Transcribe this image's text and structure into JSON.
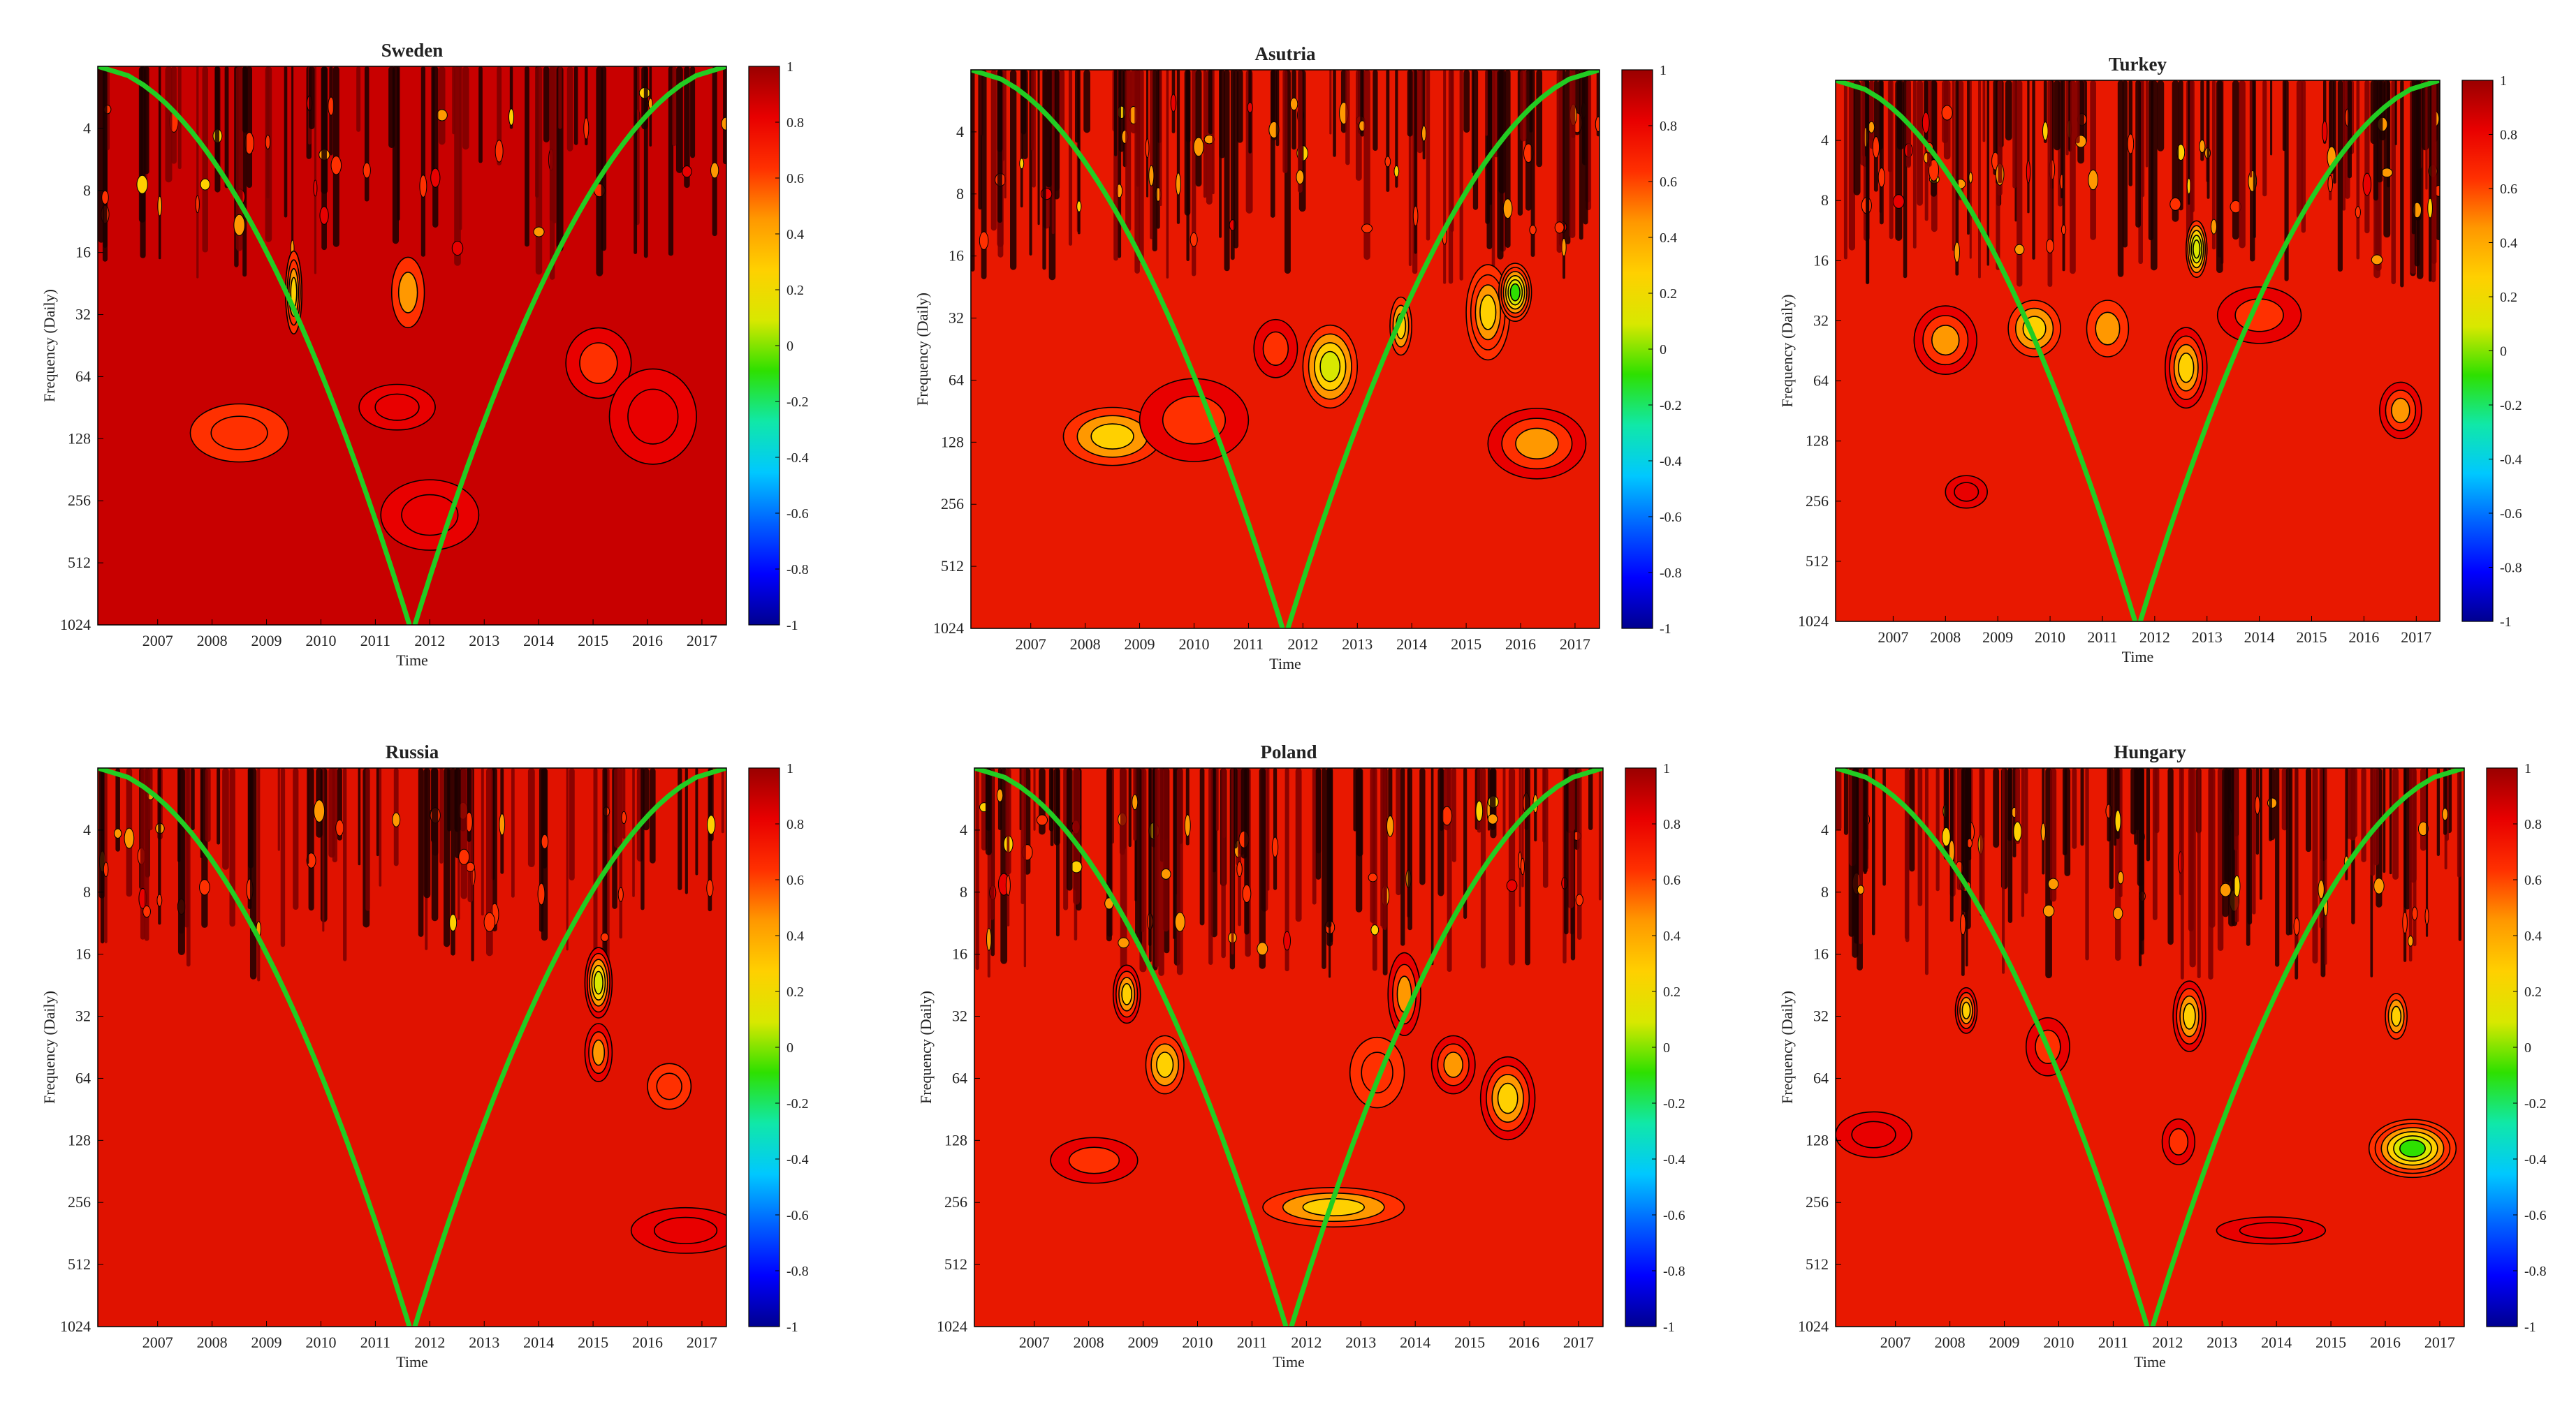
{
  "colorscale": {
    "stops": [
      "#00008f",
      "#0000ff",
      "#0060ff",
      "#00c8ff",
      "#10e8a8",
      "#2ee000",
      "#d8e800",
      "#ffd000",
      "#ff9800",
      "#ff3000",
      "#e80000",
      "#9a0000"
    ],
    "ticks": [
      "1",
      "0.8",
      "0.6",
      "0.4",
      "0.2",
      "0",
      "-0.2",
      "-0.4",
      "-0.6",
      "-0.8",
      "-1"
    ]
  },
  "coi_color": "#22cc22",
  "chart_data": [
    {
      "type": "heatmap",
      "title": "Sweden",
      "xlabel": "Time",
      "ylabel": "Frequency (Daily)",
      "x_ticks": [
        "2007",
        "2008",
        "2009",
        "2010",
        "2011",
        "2012",
        "2013",
        "2014",
        "2015",
        "2016",
        "2017"
      ],
      "y_ticks": [
        "4",
        "8",
        "16",
        "32",
        "64",
        "128",
        "256",
        "512",
        "1024"
      ],
      "y_scale": "log2",
      "x_range": [
        2006.4,
        2017.95
      ],
      "y_range": [
        2,
        1024
      ],
      "background": "#c80000",
      "high_freq_band": {
        "intensity": 0.5
      },
      "blobs": [
        {
          "x": 2009.0,
          "y": 120,
          "sx": 0.9,
          "sy": 0.4,
          "min": 0.55
        },
        {
          "x": 2011.9,
          "y": 90,
          "sx": 0.7,
          "sy": 0.3,
          "min": 0.82
        },
        {
          "x": 2012.5,
          "y": 300,
          "sx": 0.9,
          "sy": 0.5,
          "min": 0.85
        },
        {
          "x": 2015.6,
          "y": 55,
          "sx": 0.6,
          "sy": 0.5,
          "min": 0.6
        },
        {
          "x": 2016.6,
          "y": 100,
          "sx": 0.8,
          "sy": 0.7,
          "min": 0.82
        },
        {
          "x": 2010.0,
          "y": 25,
          "sx": 0.15,
          "sy": 0.6,
          "min": 0.2
        },
        {
          "x": 2012.1,
          "y": 25,
          "sx": 0.3,
          "sy": 0.5,
          "min": 0.5
        }
      ]
    },
    {
      "type": "heatmap",
      "title": "Asutria",
      "xlabel": "Time",
      "ylabel": "Frequency (Daily)",
      "x_ticks": [
        "2007",
        "2008",
        "2009",
        "2010",
        "2011",
        "2012",
        "2013",
        "2014",
        "2015",
        "2016",
        "2017"
      ],
      "y_ticks": [
        "4",
        "8",
        "16",
        "32",
        "64",
        "128",
        "256",
        "512",
        "1024"
      ],
      "y_scale": "log2",
      "x_range": [
        2006.4,
        2017.95
      ],
      "y_range": [
        2,
        1024
      ],
      "background": "#e81800",
      "high_freq_band": {
        "intensity": 0.85
      },
      "blobs": [
        {
          "x": 2009.0,
          "y": 120,
          "sx": 0.9,
          "sy": 0.4,
          "min": 0.35
        },
        {
          "x": 2010.5,
          "y": 100,
          "sx": 1.0,
          "sy": 0.6,
          "min": 0.7
        },
        {
          "x": 2013.0,
          "y": 55,
          "sx": 0.5,
          "sy": 0.6,
          "min": 0.1
        },
        {
          "x": 2015.9,
          "y": 30,
          "sx": 0.4,
          "sy": 0.7,
          "min": 0.2
        },
        {
          "x": 2016.4,
          "y": 24,
          "sx": 0.3,
          "sy": 0.4,
          "min": -0.15
        },
        {
          "x": 2016.8,
          "y": 130,
          "sx": 0.9,
          "sy": 0.5,
          "min": 0.4
        },
        {
          "x": 2014.3,
          "y": 35,
          "sx": 0.2,
          "sy": 0.4,
          "min": 0.35
        },
        {
          "x": 2012.0,
          "y": 45,
          "sx": 0.4,
          "sy": 0.4,
          "min": 0.7
        }
      ]
    },
    {
      "type": "heatmap",
      "title": "Turkey",
      "xlabel": "Time",
      "ylabel": "Frequency (Daily)",
      "x_ticks": [
        "2007",
        "2008",
        "2009",
        "2010",
        "2011",
        "2012",
        "2013",
        "2014",
        "2015",
        "2016",
        "2017"
      ],
      "y_ticks": [
        "4",
        "8",
        "16",
        "32",
        "64",
        "128",
        "256",
        "512",
        "1024"
      ],
      "y_scale": "log2",
      "x_range": [
        2006.4,
        2017.95
      ],
      "y_range": [
        2,
        1024
      ],
      "background": "#e81800",
      "high_freq_band": {
        "intensity": 0.9
      },
      "blobs": [
        {
          "x": 2008.5,
          "y": 40,
          "sx": 0.6,
          "sy": 0.5,
          "min": 0.4
        },
        {
          "x": 2010.2,
          "y": 35,
          "sx": 0.5,
          "sy": 0.4,
          "min": 0.35
        },
        {
          "x": 2013.1,
          "y": 55,
          "sx": 0.4,
          "sy": 0.6,
          "min": 0.3
        },
        {
          "x": 2013.3,
          "y": 14,
          "sx": 0.2,
          "sy": 0.4,
          "min": 0.0
        },
        {
          "x": 2017.2,
          "y": 90,
          "sx": 0.4,
          "sy": 0.4,
          "min": 0.45
        },
        {
          "x": 2011.6,
          "y": 35,
          "sx": 0.4,
          "sy": 0.4,
          "min": 0.5
        },
        {
          "x": 2014.5,
          "y": 30,
          "sx": 0.8,
          "sy": 0.4,
          "min": 0.6
        },
        {
          "x": 2008.9,
          "y": 230,
          "sx": 0.4,
          "sy": 0.2,
          "min": 0.75
        }
      ]
    },
    {
      "type": "heatmap",
      "title": "Russia",
      "xlabel": "Time",
      "ylabel": "Frequency (Daily)",
      "x_ticks": [
        "2007",
        "2008",
        "2009",
        "2010",
        "2011",
        "2012",
        "2013",
        "2014",
        "2015",
        "2016",
        "2017"
      ],
      "y_ticks": [
        "4",
        "8",
        "16",
        "32",
        "64",
        "128",
        "256",
        "512",
        "1024"
      ],
      "y_scale": "log2",
      "x_range": [
        2006.4,
        2017.95
      ],
      "y_range": [
        2,
        1024
      ],
      "background": "#e01200",
      "high_freq_band": {
        "intensity": 0.6
      },
      "blobs": [
        {
          "x": 2015.6,
          "y": 22,
          "sx": 0.25,
          "sy": 0.5,
          "min": 0.05
        },
        {
          "x": 2015.6,
          "y": 48,
          "sx": 0.25,
          "sy": 0.4,
          "min": 0.45
        },
        {
          "x": 2016.9,
          "y": 70,
          "sx": 0.4,
          "sy": 0.3,
          "min": 0.55
        },
        {
          "x": 2017.2,
          "y": 350,
          "sx": 1.0,
          "sy": 0.3,
          "min": 0.88
        }
      ]
    },
    {
      "type": "heatmap",
      "title": "Poland",
      "xlabel": "Time",
      "ylabel": "Frequency (Daily)",
      "x_ticks": [
        "2007",
        "2008",
        "2009",
        "2010",
        "2011",
        "2012",
        "2013",
        "2014",
        "2015",
        "2016",
        "2017"
      ],
      "y_ticks": [
        "4",
        "8",
        "16",
        "32",
        "64",
        "128",
        "256",
        "512",
        "1024"
      ],
      "y_scale": "log2",
      "x_range": [
        2006.4,
        2017.95
      ],
      "y_range": [
        2,
        1024
      ],
      "background": "#e81800",
      "high_freq_band": {
        "intensity": 0.85
      },
      "blobs": [
        {
          "x": 2013.0,
          "y": 270,
          "sx": 1.3,
          "sy": 0.25,
          "min": 0.35
        },
        {
          "x": 2009.9,
          "y": 55,
          "sx": 0.35,
          "sy": 0.4,
          "min": 0.35
        },
        {
          "x": 2009.2,
          "y": 25,
          "sx": 0.25,
          "sy": 0.4,
          "min": 0.25
        },
        {
          "x": 2016.2,
          "y": 80,
          "sx": 0.5,
          "sy": 0.6,
          "min": 0.3
        },
        {
          "x": 2015.2,
          "y": 55,
          "sx": 0.4,
          "sy": 0.4,
          "min": 0.4
        },
        {
          "x": 2008.6,
          "y": 160,
          "sx": 0.8,
          "sy": 0.3,
          "min": 0.7
        },
        {
          "x": 2013.8,
          "y": 60,
          "sx": 0.5,
          "sy": 0.5,
          "min": 0.55
        },
        {
          "x": 2014.3,
          "y": 25,
          "sx": 0.3,
          "sy": 0.6,
          "min": 0.45
        }
      ]
    },
    {
      "type": "heatmap",
      "title": "Hungary",
      "xlabel": "Time",
      "ylabel": "Frequency (Daily)",
      "x_ticks": [
        "2007",
        "2008",
        "2009",
        "2010",
        "2011",
        "2012",
        "2013",
        "2014",
        "2015",
        "2016",
        "2017"
      ],
      "y_ticks": [
        "4",
        "8",
        "16",
        "32",
        "64",
        "128",
        "256",
        "512",
        "1024"
      ],
      "y_scale": "log2",
      "x_range": [
        2006.4,
        2017.95
      ],
      "y_range": [
        2,
        1024
      ],
      "background": "#e81800",
      "high_freq_band": {
        "intensity": 0.85
      },
      "blobs": [
        {
          "x": 2017.0,
          "y": 140,
          "sx": 0.8,
          "sy": 0.4,
          "min": -0.15
        },
        {
          "x": 2012.9,
          "y": 32,
          "sx": 0.3,
          "sy": 0.5,
          "min": 0.25
        },
        {
          "x": 2008.8,
          "y": 30,
          "sx": 0.2,
          "sy": 0.3,
          "min": 0.3
        },
        {
          "x": 2016.7,
          "y": 32,
          "sx": 0.2,
          "sy": 0.3,
          "min": 0.35
        },
        {
          "x": 2012.7,
          "y": 130,
          "sx": 0.3,
          "sy": 0.3,
          "min": 0.65
        },
        {
          "x": 2007.1,
          "y": 120,
          "sx": 0.7,
          "sy": 0.3,
          "min": 0.8
        },
        {
          "x": 2010.3,
          "y": 45,
          "sx": 0.4,
          "sy": 0.4,
          "min": 0.65
        },
        {
          "x": 2014.4,
          "y": 350,
          "sx": 1.0,
          "sy": 0.15,
          "min": 0.85
        }
      ]
    }
  ]
}
